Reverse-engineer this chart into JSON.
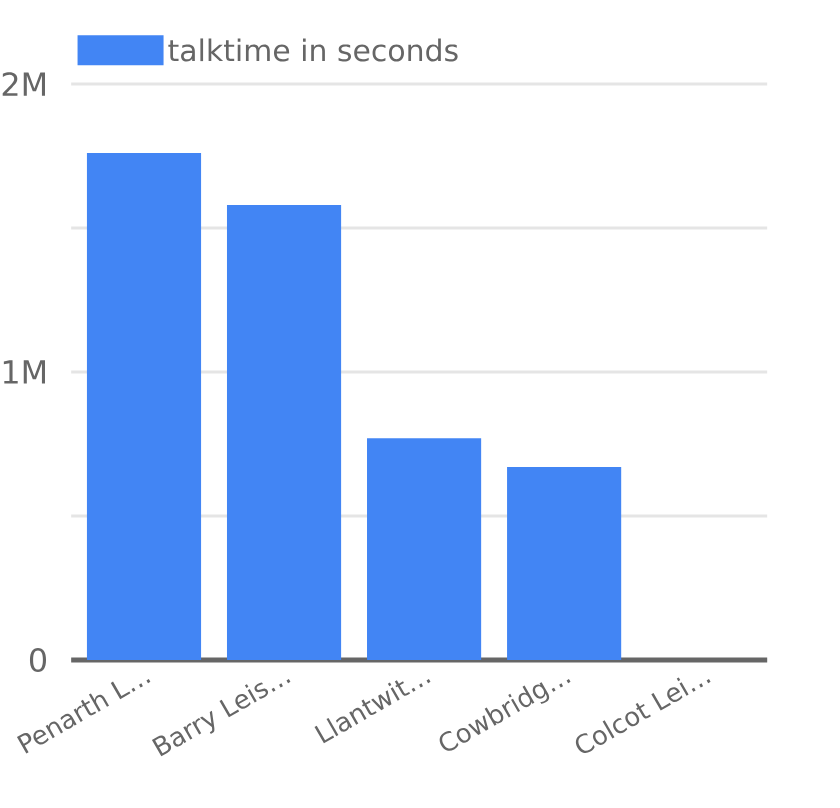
{
  "chart_data": {
    "type": "bar",
    "categories": [
      "Penarth L…",
      "Barry Leis…",
      "Llantwit…",
      "Cowbridg…",
      "Colcot Lei…"
    ],
    "series": [
      {
        "name": "talktime in seconds",
        "color": "#4285f4",
        "values": [
          1760000,
          1580000,
          770000,
          670000,
          0
        ]
      }
    ],
    "ylim": [
      0,
      2000000
    ],
    "yticks": [
      0,
      {
        "value": 500000,
        "label": null
      },
      {
        "value": 1000000,
        "label": "1M"
      },
      {
        "value": 1500000,
        "label": null
      },
      {
        "value": 2000000,
        "label": "2M"
      }
    ],
    "grid": "y",
    "legend": "top left"
  }
}
